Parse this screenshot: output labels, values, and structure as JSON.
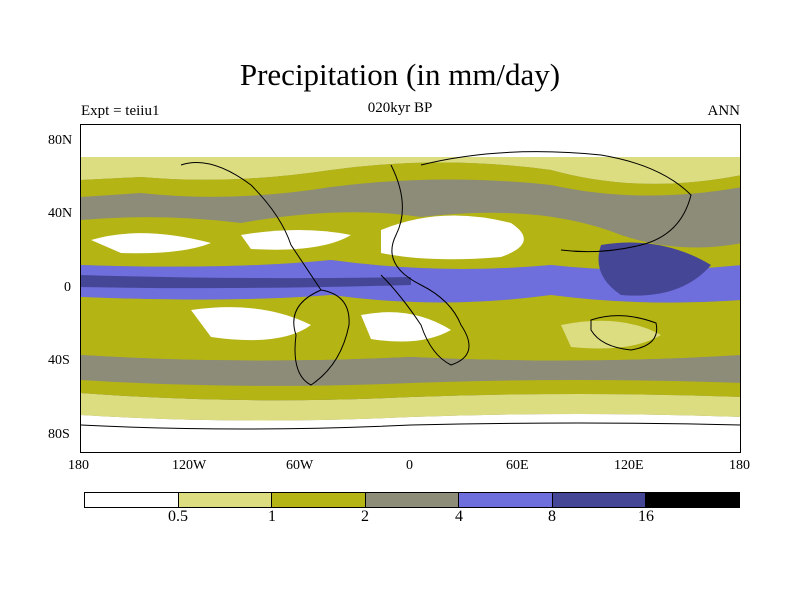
{
  "title": "Precipitation (in mm/day)",
  "subtitle": "020kyr BP",
  "left_label": "Expt = teiiu1",
  "right_label": "ANN",
  "lat_labels": [
    "80N",
    "40N",
    "0",
    "40S",
    "80S"
  ],
  "lon_labels": [
    "180",
    "120W",
    "60W",
    "0",
    "60E",
    "120E",
    "180"
  ],
  "colorbar": {
    "colors": [
      "#ffffff",
      "#dcdc80",
      "#b4b414",
      "#8c8c78",
      "#6e6edc",
      "#464696",
      "#000000"
    ],
    "ticks": [
      "0.5",
      "1",
      "2",
      "4",
      "8",
      "16"
    ]
  }
}
